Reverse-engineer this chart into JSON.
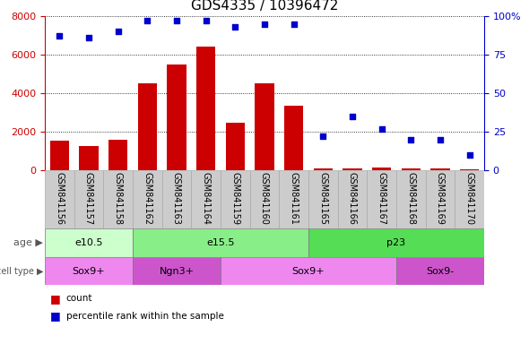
{
  "title": "GDS4335 / 10396472",
  "samples": [
    "GSM841156",
    "GSM841157",
    "GSM841158",
    "GSM841162",
    "GSM841163",
    "GSM841164",
    "GSM841159",
    "GSM841160",
    "GSM841161",
    "GSM841165",
    "GSM841166",
    "GSM841167",
    "GSM841168",
    "GSM841169",
    "GSM841170"
  ],
  "counts": [
    1550,
    1250,
    1600,
    4500,
    5500,
    6400,
    2450,
    4500,
    3350,
    90,
    80,
    120,
    90,
    80,
    50
  ],
  "percentiles": [
    87,
    86,
    90,
    97,
    97,
    97,
    93,
    95,
    95,
    22,
    35,
    27,
    20,
    20,
    10
  ],
  "bar_color": "#cc0000",
  "dot_color": "#0000cc",
  "ylim_left": [
    0,
    8000
  ],
  "ylim_right": [
    0,
    100
  ],
  "yticks_left": [
    0,
    2000,
    4000,
    6000,
    8000
  ],
  "yticks_right": [
    0,
    25,
    50,
    75,
    100
  ],
  "age_groups": [
    {
      "label": "e10.5",
      "start": 0,
      "end": 3,
      "color": "#ccffcc"
    },
    {
      "label": "e15.5",
      "start": 3,
      "end": 9,
      "color": "#88ee88"
    },
    {
      "label": "p23",
      "start": 9,
      "end": 15,
      "color": "#55dd55"
    }
  ],
  "cell_groups": [
    {
      "label": "Sox9+",
      "start": 0,
      "end": 3,
      "color": "#ee88ee"
    },
    {
      "label": "Ngn3+",
      "start": 3,
      "end": 6,
      "color": "#cc55cc"
    },
    {
      "label": "Sox9+",
      "start": 6,
      "end": 12,
      "color": "#ee88ee"
    },
    {
      "label": "Sox9-",
      "start": 12,
      "end": 15,
      "color": "#cc55cc"
    }
  ],
  "legend_count_label": "count",
  "legend_pct_label": "percentile rank within the sample",
  "xtick_bg": "#cccccc",
  "tick_fontsize": 7,
  "label_fontsize": 8,
  "title_fontsize": 11
}
